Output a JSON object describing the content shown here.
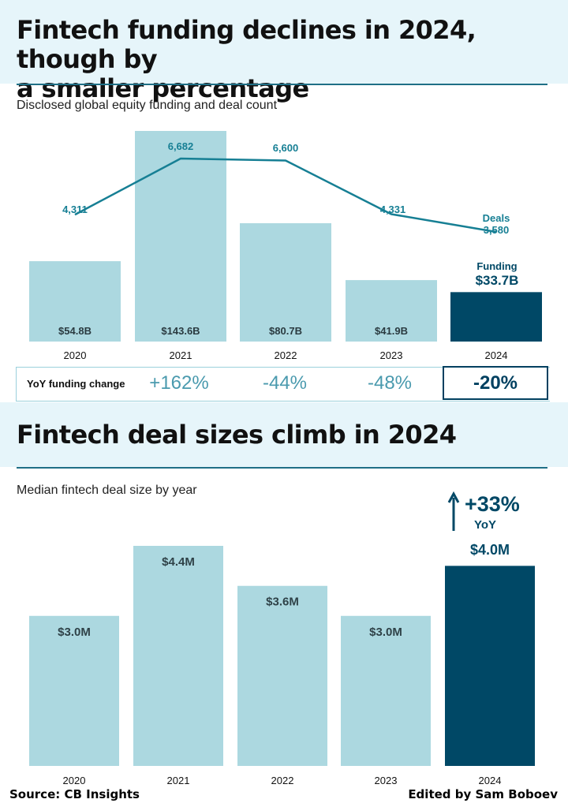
{
  "title1": "Fintech funding declines in 2024, though by a smaller percentage",
  "title1_line1": "Fintech funding declines in 2024, though by",
  "title1_line2": "a smaller percentage",
  "subtitle1": "Disclosed global equity funding and deal count",
  "title2": "Fintech deal sizes climb in 2024",
  "subtitle2": "Median fintech deal size by year",
  "yoy": {
    "label": "YoY funding change",
    "values": [
      "+162%",
      "-44%",
      "-48%",
      "-20%"
    ]
  },
  "source": "Source: CB Insights",
  "editor": "Edited by Sam Boboev",
  "colors": {
    "bar": "#acd8e0",
    "highlight": "#004866",
    "line": "#167f94",
    "band": "#e6f5fa"
  },
  "chart_data": [
    {
      "type": "bar",
      "categories": [
        "2020",
        "2021",
        "2022",
        "2023",
        "2024"
      ],
      "series": [
        {
          "name": "Funding",
          "values": [
            54.8,
            143.6,
            80.7,
            41.9,
            33.7
          ],
          "labels": [
            "$54.8B",
            "$143.6B",
            "$80.7B",
            "$41.9B",
            "$33.7B"
          ]
        },
        {
          "name": "Deals",
          "type": "line",
          "values": [
            4311,
            6682,
            6600,
            4331,
            3580
          ],
          "labels": [
            "4,311",
            "6,682",
            "6,600",
            "4,331",
            "3,580"
          ]
        }
      ],
      "highlight_index": 4,
      "grid": false
    },
    {
      "type": "bar",
      "categories": [
        "2020",
        "2021",
        "2022",
        "2023",
        "2024"
      ],
      "values": [
        3.0,
        4.4,
        3.6,
        3.0,
        4.0
      ],
      "labels": [
        "$3.0M",
        "$4.4M",
        "$3.6M",
        "$3.0M",
        "$4.0M"
      ],
      "highlight_index": 4,
      "annotation": {
        "change": "+33%",
        "unit": "YoY"
      },
      "grid": false
    }
  ]
}
